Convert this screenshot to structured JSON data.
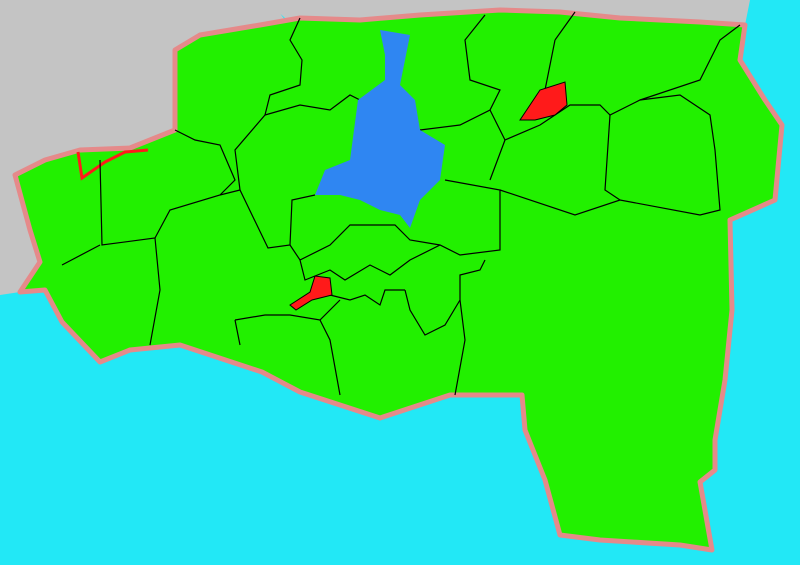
{
  "map": {
    "colors": {
      "sea": "#22e8f6",
      "outside_land": "#c4c4c4",
      "region_fill": "#22f000",
      "lake": "#2f86f2",
      "highlight": "#ff1a1a",
      "boundary": "#000000",
      "coast_edge": "#e58a8a"
    },
    "regions": [
      {
        "name": "highlight-region-north",
        "category": "highlight"
      },
      {
        "name": "highlight-region-central",
        "category": "highlight"
      },
      {
        "name": "lake",
        "category": "water"
      }
    ]
  }
}
